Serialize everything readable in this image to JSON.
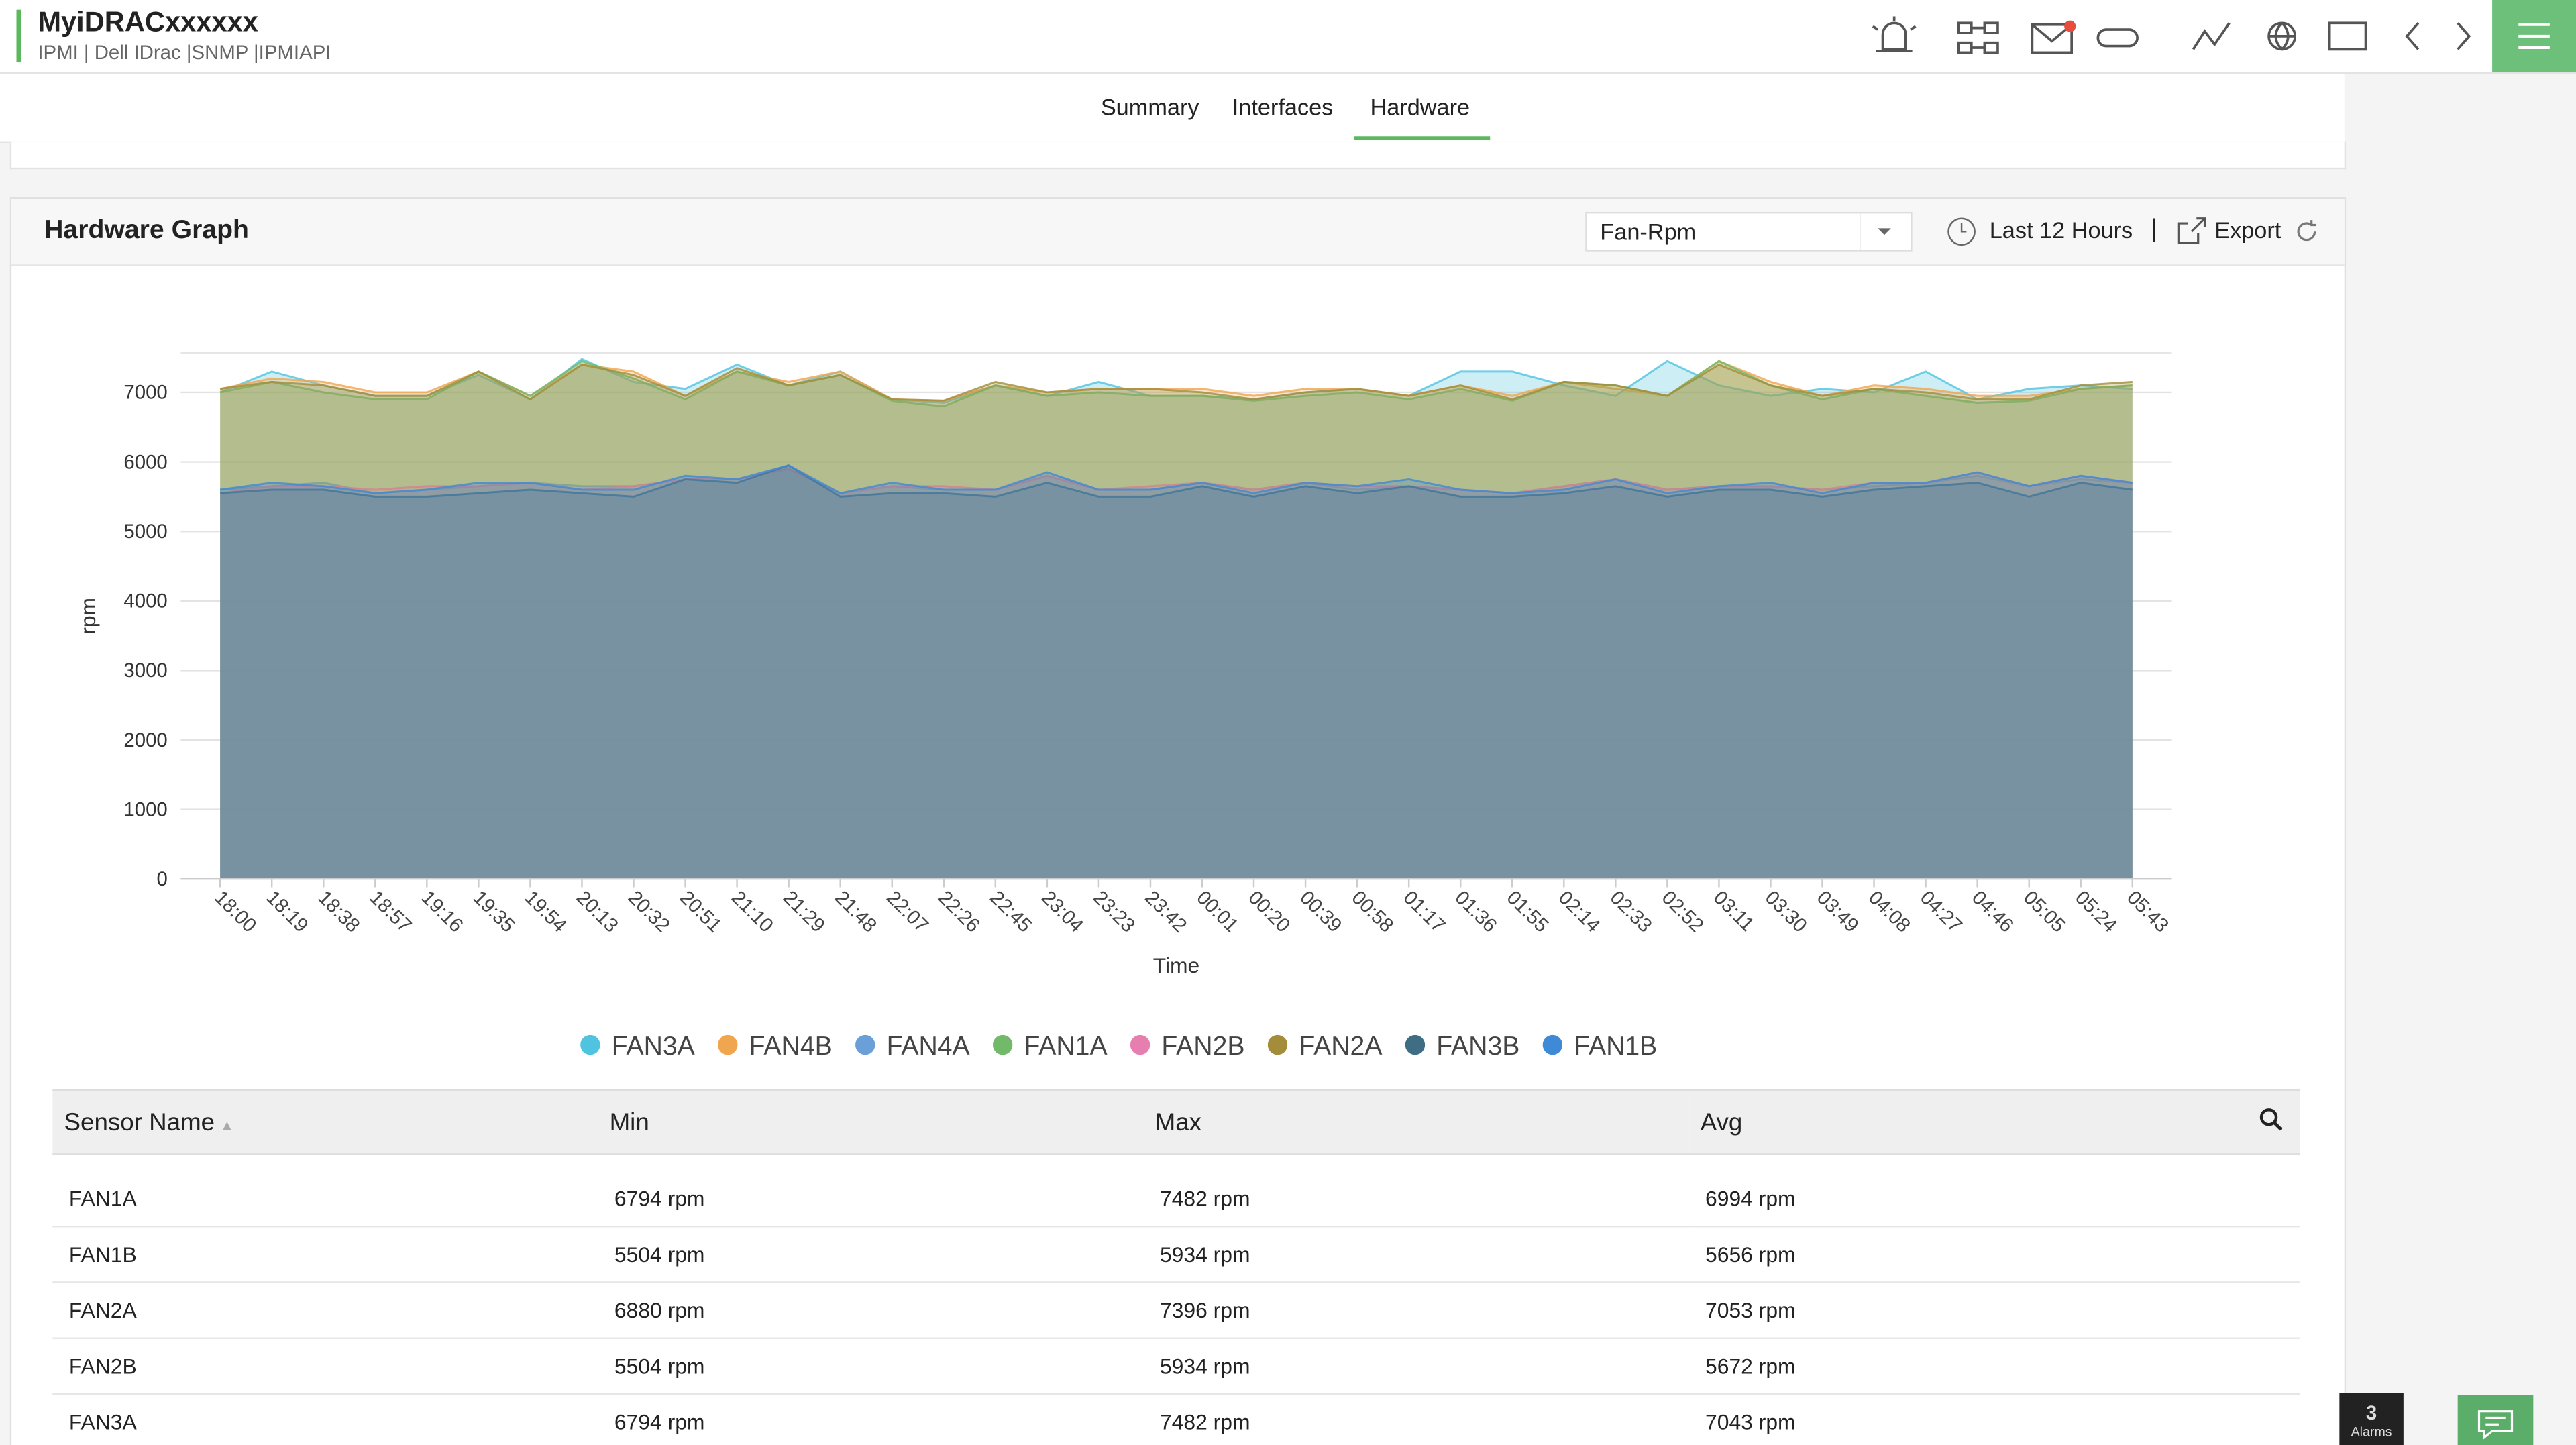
{
  "header": {
    "title": "MyiDRACxxxxxx",
    "subtitle": "IPMI | Dell IDrac |SNMP |IPMIAPI"
  },
  "tabs": [
    "Summary",
    "Interfaces",
    "Hardware"
  ],
  "panel": {
    "title": "Hardware Graph",
    "selector": "Fan-Rpm",
    "range": "Last 12 Hours",
    "separator": "|",
    "export": "Export"
  },
  "chart_data": {
    "type": "area",
    "x_label": "Time",
    "y_label": "rpm",
    "categories": [
      "18:00",
      "18:19",
      "18:38",
      "18:57",
      "19:16",
      "19:35",
      "19:54",
      "20:13",
      "20:32",
      "20:51",
      "21:10",
      "21:29",
      "21:48",
      "22:07",
      "22:26",
      "22:45",
      "23:04",
      "23:23",
      "23:42",
      "00:01",
      "00:20",
      "00:39",
      "00:58",
      "01:17",
      "01:36",
      "01:55",
      "02:14",
      "02:33",
      "02:52",
      "03:11",
      "03:30",
      "03:49",
      "04:08",
      "04:27",
      "04:46",
      "05:05",
      "05:24",
      "05:43"
    ],
    "ylim": [
      0,
      7500
    ],
    "yticks": [
      0,
      1000,
      2000,
      3000,
      4000,
      5000,
      6000,
      7000
    ],
    "grid": true,
    "series": [
      {
        "name": "FAN3A",
        "color": "#4fc3e0",
        "values": [
          7000,
          7300,
          7100,
          6950,
          6950,
          7250,
          6900,
          7480,
          7150,
          7050,
          7400,
          7100,
          7300,
          6900,
          6850,
          7100,
          6950,
          7150,
          6950,
          6950,
          6900,
          7000,
          7050,
          6950,
          7300,
          7300,
          7100,
          6950,
          7450,
          7100,
          6950,
          7050,
          7000,
          7300,
          6900,
          7050,
          7100,
          7050
        ]
      },
      {
        "name": "FAN4B",
        "color": "#f0a54f",
        "values": [
          7050,
          7200,
          7150,
          7000,
          7000,
          7300,
          6950,
          7400,
          7300,
          6950,
          7300,
          7150,
          7300,
          6900,
          6880,
          7100,
          7000,
          7050,
          7050,
          7050,
          6950,
          7050,
          7050,
          6950,
          7100,
          6950,
          7150,
          7050,
          6950,
          7450,
          7150,
          6950,
          7100,
          7050,
          6950,
          6950,
          7050,
          7100
        ]
      },
      {
        "name": "FAN4A",
        "color": "#6a9fd8",
        "values": [
          5600,
          5650,
          5700,
          5550,
          5600,
          5650,
          5700,
          5650,
          5650,
          5750,
          5750,
          5900,
          5550,
          5650,
          5600,
          5600,
          5800,
          5600,
          5600,
          5700,
          5600,
          5700,
          5600,
          5650,
          5600,
          5550,
          5650,
          5750,
          5600,
          5650,
          5650,
          5600,
          5650,
          5700,
          5800,
          5650,
          5750,
          5700
        ]
      },
      {
        "name": "FAN1A",
        "color": "#72b96a",
        "values": [
          7000,
          7150,
          7000,
          6900,
          6900,
          7300,
          6950,
          7450,
          7200,
          6900,
          7300,
          7100,
          7250,
          6880,
          6800,
          7100,
          6950,
          7000,
          6950,
          6950,
          6880,
          6950,
          7000,
          6900,
          7050,
          6880,
          7150,
          7100,
          6950,
          7450,
          7100,
          6900,
          7050,
          6950,
          6850,
          6880,
          7050,
          7100
        ]
      },
      {
        "name": "FAN2B",
        "color": "#e67fb0",
        "values": [
          5550,
          5650,
          5650,
          5600,
          5650,
          5650,
          5700,
          5600,
          5650,
          5750,
          5750,
          5900,
          5550,
          5650,
          5650,
          5600,
          5800,
          5600,
          5650,
          5700,
          5600,
          5700,
          5650,
          5650,
          5600,
          5550,
          5650,
          5750,
          5600,
          5650,
          5650,
          5600,
          5700,
          5700,
          5850,
          5650,
          5800,
          5700
        ]
      },
      {
        "name": "FAN2A",
        "color": "#a38d3a",
        "values": [
          7050,
          7150,
          7100,
          6950,
          6950,
          7300,
          6900,
          7400,
          7250,
          6950,
          7350,
          7100,
          7250,
          6900,
          6880,
          7150,
          7000,
          7050,
          7050,
          7000,
          6900,
          7000,
          7050,
          6950,
          7100,
          6900,
          7150,
          7100,
          6950,
          7400,
          7100,
          6950,
          7050,
          7000,
          6900,
          6900,
          7100,
          7150
        ]
      },
      {
        "name": "FAN3B",
        "color": "#3f6e84",
        "values": [
          5550,
          5600,
          5600,
          5500,
          5500,
          5550,
          5600,
          5550,
          5500,
          5750,
          5700,
          5950,
          5500,
          5550,
          5550,
          5500,
          5700,
          5500,
          5500,
          5650,
          5500,
          5650,
          5550,
          5650,
          5500,
          5500,
          5550,
          5650,
          5500,
          5600,
          5600,
          5500,
          5600,
          5650,
          5700,
          5500,
          5700,
          5600
        ]
      },
      {
        "name": "FAN1B",
        "color": "#3e8ad6",
        "values": [
          5600,
          5700,
          5650,
          5550,
          5600,
          5700,
          5700,
          5600,
          5600,
          5800,
          5750,
          5950,
          5550,
          5700,
          5600,
          5600,
          5850,
          5600,
          5600,
          5700,
          5550,
          5700,
          5650,
          5750,
          5600,
          5550,
          5600,
          5750,
          5550,
          5650,
          5700,
          5550,
          5700,
          5700,
          5850,
          5650,
          5800,
          5700
        ]
      }
    ]
  },
  "table": {
    "columns": [
      "Sensor Name",
      "Min",
      "Max",
      "Avg"
    ],
    "rows": [
      [
        "FAN1A",
        "6794 rpm",
        "7482 rpm",
        "6994 rpm"
      ],
      [
        "FAN1B",
        "5504 rpm",
        "5934 rpm",
        "5656 rpm"
      ],
      [
        "FAN2A",
        "6880 rpm",
        "7396 rpm",
        "7053 rpm"
      ],
      [
        "FAN2B",
        "5504 rpm",
        "5934 rpm",
        "5672 rpm"
      ],
      [
        "FAN3A",
        "6794 rpm",
        "7482 rpm",
        "7043 rpm"
      ]
    ]
  },
  "alarms": {
    "count": "3",
    "label": "Alarms"
  }
}
